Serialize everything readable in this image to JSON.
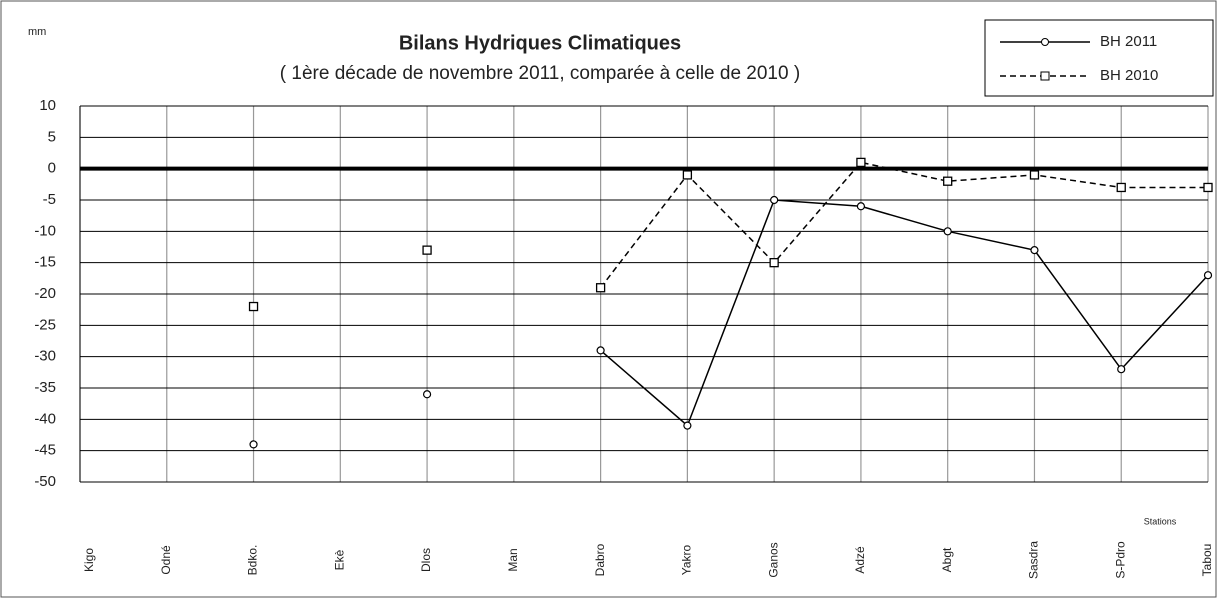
{
  "chart_data": {
    "type": "line",
    "title": "Bilans Hydriques Climatiques",
    "subtitle": "( 1ère décade de novembre 2011, comparée à celle de 2010 )",
    "y_label": "mm",
    "x_label": "Stations",
    "categories": [
      "Kigo",
      "Odné",
      "Bdko.",
      "Ekè",
      "Dlos",
      "Man",
      "Dabro",
      "Yakro",
      "Ganos",
      "Adzé",
      "Abgt",
      "Sasdra",
      "S-Pdro",
      "Tabou"
    ],
    "series": [
      {
        "name": "BH 2011",
        "color": "#000000",
        "dash": "solid",
        "marker": "circle",
        "values": [
          null,
          null,
          -44,
          null,
          -36,
          null,
          -29,
          -41,
          -5,
          -6,
          -10,
          -13,
          -32,
          -17
        ]
      },
      {
        "name": "BH 2010",
        "color": "#000000",
        "dash": "dashed",
        "marker": "square",
        "values": [
          null,
          null,
          -22,
          null,
          -13,
          null,
          -19,
          -1,
          -15,
          1,
          -2,
          -1,
          -3,
          -3
        ]
      }
    ],
    "ylim": [
      -50,
      10
    ],
    "yticks": [
      10,
      5,
      0,
      -5,
      -10,
      -15,
      -20,
      -25,
      -30,
      -35,
      -40,
      -45,
      -50
    ],
    "grid": true,
    "legend": "upper right"
  }
}
